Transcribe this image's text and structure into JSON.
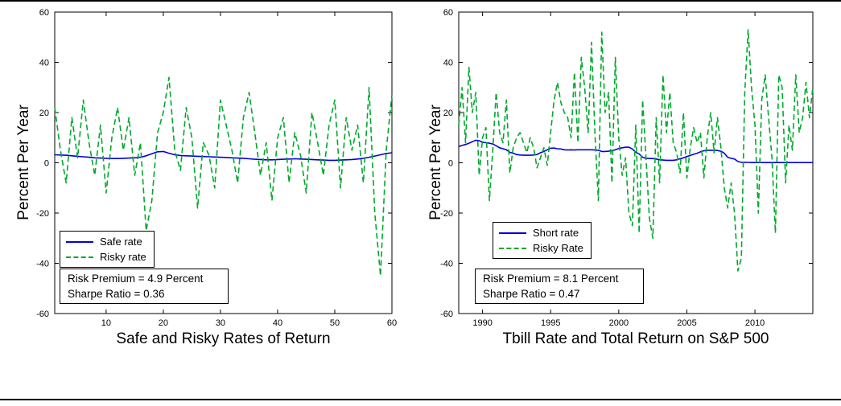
{
  "figure": {
    "background": "#ffffff",
    "frame_color": "#000000",
    "axis_color": "#000000"
  },
  "chart_data": [
    {
      "type": "line",
      "title": "Safe and Risky Rates of Return",
      "ylabel": "Percent Per Year",
      "xlim": [
        1,
        60
      ],
      "ylim": [
        -60,
        60
      ],
      "x_ticks": [
        10,
        20,
        30,
        40,
        50,
        60
      ],
      "y_ticks": [
        -60,
        -40,
        -20,
        0,
        20,
        40,
        60
      ],
      "x_start": 1,
      "x_step": 1,
      "grid": false,
      "legend_position": "lower-left",
      "annotation": [
        "Risk Premium = 4.9 Percent",
        "Sharpe Ratio = 0.36"
      ],
      "series": [
        {
          "name": "Safe rate",
          "color": "#0000e0",
          "dashed": false,
          "values": [
            3.2,
            3.1,
            3.0,
            2.8,
            2.6,
            2.4,
            2.2,
            2.0,
            1.9,
            1.8,
            1.7,
            1.7,
            1.8,
            1.9,
            2.0,
            2.2,
            2.8,
            3.6,
            4.4,
            4.5,
            3.8,
            3.2,
            2.9,
            2.8,
            2.7,
            2.6,
            2.5,
            2.4,
            2.3,
            2.2,
            2.1,
            2.0,
            1.9,
            1.8,
            1.6,
            1.4,
            1.3,
            1.2,
            1.2,
            1.3,
            1.4,
            1.5,
            1.6,
            1.5,
            1.4,
            1.3,
            1.2,
            1.1,
            1.0,
            1.0,
            1.1,
            1.2,
            1.3,
            1.5,
            1.8,
            2.2,
            2.7,
            3.2,
            3.7,
            4.0
          ]
        },
        {
          "name": "Risky rate",
          "color": "#00a82d",
          "dashed": true,
          "values": [
            22,
            5,
            -8,
            18,
            2,
            25,
            8,
            -5,
            15,
            -12,
            10,
            22,
            5,
            18,
            -5,
            8,
            -27,
            -15,
            12,
            20,
            34,
            5,
            -3,
            22,
            10,
            -18,
            8,
            3,
            -10,
            25,
            15,
            5,
            -8,
            18,
            28,
            12,
            -5,
            8,
            -15,
            10,
            18,
            -8,
            12,
            3,
            -12,
            20,
            8,
            -5,
            15,
            25,
            -10,
            18,
            5,
            15,
            -8,
            30,
            -20,
            -45,
            5,
            27
          ]
        }
      ]
    },
    {
      "type": "line",
      "title": "Tbill Rate and Total Return on S&P 500",
      "ylabel": "Percent Per Year",
      "xlim": [
        1988.25,
        2014.25
      ],
      "ylim": [
        -60,
        60
      ],
      "x_ticks": [
        1990,
        1995,
        2000,
        2005,
        2010
      ],
      "y_ticks": [
        -60,
        -40,
        -20,
        0,
        20,
        40,
        60
      ],
      "x_start": 1988.25,
      "x_step": 0.25,
      "grid": false,
      "legend_position": "lower-left",
      "annotation": [
        "Risk Premium = 8.1 Percent",
        "Sharpe Ratio = 0.47"
      ],
      "series": [
        {
          "name": "Short rate",
          "color": "#0000e0",
          "dashed": false,
          "values": [
            6.5,
            6.9,
            7.3,
            7.8,
            8.4,
            9.0,
            8.8,
            8.2,
            8.0,
            7.8,
            7.5,
            6.8,
            6.0,
            5.6,
            5.2,
            4.2,
            3.8,
            3.3,
            3.1,
            3.0,
            3.0,
            3.0,
            3.1,
            3.3,
            4.0,
            4.5,
            5.2,
            5.8,
            5.9,
            5.6,
            5.5,
            5.2,
            5.1,
            5.2,
            5.1,
            5.2,
            5.2,
            5.2,
            5.2,
            5.2,
            5.1,
            5.0,
            4.5,
            4.5,
            4.6,
            4.8,
            5.2,
            5.7,
            6.0,
            6.2,
            6.2,
            5.5,
            4.2,
            3.5,
            2.2,
            1.8,
            1.7,
            1.7,
            1.5,
            1.2,
            1.1,
            1.0,
            1.0,
            1.0,
            1.2,
            1.6,
            2.0,
            2.5,
            2.9,
            3.4,
            3.8,
            4.4,
            4.8,
            5.0,
            5.0,
            5.0,
            4.9,
            4.6,
            3.8,
            2.2,
            1.8,
            1.5,
            0.5,
            0.2,
            0.2,
            0.15,
            0.1,
            0.1,
            0.1,
            0.1,
            0.1,
            0.1,
            0.1,
            0.1,
            0.1,
            0.1,
            0.1,
            0.1,
            0.1,
            0.1,
            0.1,
            0.1,
            0.1,
            0.1,
            0.1
          ]
        },
        {
          "name": "Risky Rate",
          "color": "#00a82d",
          "dashed": true,
          "values": [
            15,
            30,
            8,
            38,
            20,
            28,
            -5,
            10,
            14,
            -15,
            5,
            28,
            12,
            8,
            25,
            -4,
            6,
            10,
            12,
            8,
            4,
            10,
            6,
            -2,
            2,
            6,
            -1,
            12,
            25,
            32,
            24,
            20,
            18,
            10,
            36,
            8,
            42,
            30,
            12,
            48,
            12,
            -15,
            52,
            20,
            28,
            -8,
            42,
            10,
            -5,
            2,
            -20,
            -25,
            15,
            -28,
            25,
            2,
            -22,
            -30,
            18,
            -8,
            35,
            12,
            28,
            8,
            4,
            -4,
            20,
            -6,
            6,
            14,
            8,
            12,
            -6,
            10,
            20,
            4,
            18,
            6,
            -10,
            -18,
            -8,
            -20,
            -43,
            -38,
            28,
            53,
            30,
            15,
            -20,
            25,
            35,
            18,
            2,
            -28,
            35,
            30,
            -8,
            15,
            5,
            35,
            12,
            18,
            32,
            18,
            30
          ]
        }
      ]
    }
  ]
}
